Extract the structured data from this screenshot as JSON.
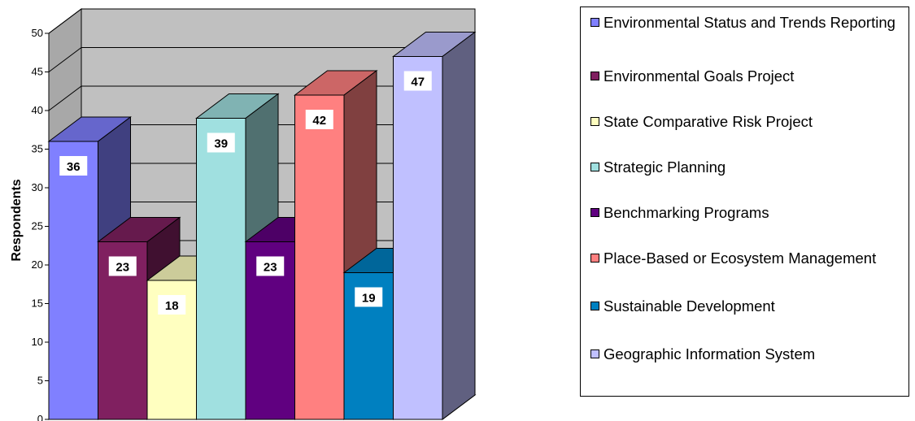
{
  "chart_data": {
    "type": "bar",
    "style": "3d-column",
    "ylabel": "Respondents",
    "ylim": [
      0,
      50
    ],
    "ytick_step": 5,
    "yticks": [
      "0",
      "5",
      "10",
      "15",
      "20",
      "25",
      "30",
      "35",
      "40",
      "45",
      "50"
    ],
    "grid": true,
    "legend_position": "right",
    "series": [
      {
        "name": "Environmental Status and Trends Reporting",
        "value": 36,
        "label": "36",
        "color": "#8080ff"
      },
      {
        "name": "Environmental Goals Project",
        "value": 23,
        "label": "23",
        "color": "#802060"
      },
      {
        "name": "State Comparative Risk Project",
        "value": 18,
        "label": "18",
        "color": "#ffffc0"
      },
      {
        "name": "Strategic Planning",
        "value": 39,
        "label": "39",
        "color": "#a0e0e0"
      },
      {
        "name": "Benchmarking Programs",
        "value": 23,
        "label": "23",
        "color": "#600080"
      },
      {
        "name": "Place-Based or Ecosystem Management",
        "value": 42,
        "label": "42",
        "color": "#ff8080"
      },
      {
        "name": "Sustainable Development",
        "value": 19,
        "label": "19",
        "color": "#0080c0"
      },
      {
        "name": "Geographic Information System",
        "value": 47,
        "label": "47",
        "color": "#c0c0ff"
      }
    ]
  }
}
